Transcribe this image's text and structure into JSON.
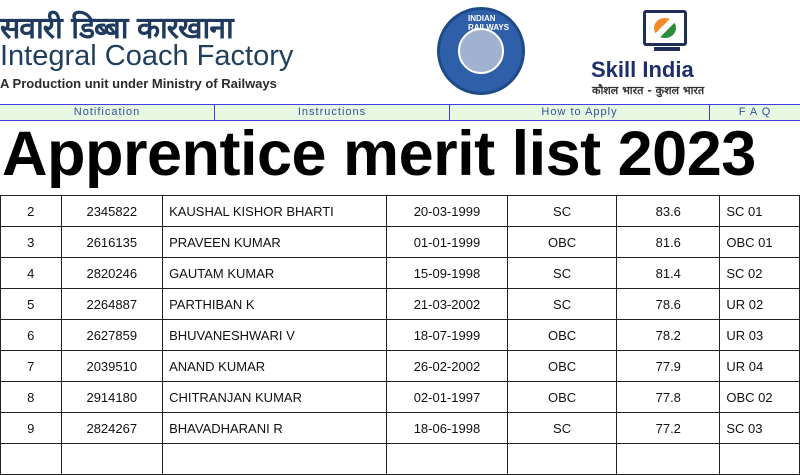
{
  "header": {
    "hindi_name": "सवारी डिब्बा कारखाना",
    "org_name": "Integral Coach Factory",
    "tagline": "A Production unit under Ministry of Railways",
    "emblem_text": "INDIAN RAILWAYS",
    "skill_india": "Skill India",
    "skill_india_hindi": "कौशल भारत - कुशल भारत"
  },
  "nav": [
    {
      "label": "Notification"
    },
    {
      "label": "Instructions"
    },
    {
      "label": "How to Apply"
    },
    {
      "label": "F A Q"
    }
  ],
  "title": "Apprentice merit list 2023",
  "table": {
    "rows": [
      [
        "2",
        "2345822",
        "KAUSHAL KISHOR BHARTI",
        "20-03-1999",
        "SC",
        "83.6",
        "SC 01"
      ],
      [
        "3",
        "2616135",
        "PRAVEEN KUMAR",
        "01-01-1999",
        "OBC",
        "81.6",
        "OBC 01"
      ],
      [
        "4",
        "2820246",
        "GAUTAM KUMAR",
        "15-09-1998",
        "SC",
        "81.4",
        "SC 02"
      ],
      [
        "5",
        "2264887",
        "PARTHIBAN K",
        "21-03-2002",
        "SC",
        "78.6",
        "UR 02"
      ],
      [
        "6",
        "2627859",
        "BHUVANESHWARI V",
        "18-07-1999",
        "OBC",
        "78.2",
        "UR 03"
      ],
      [
        "7",
        "2039510",
        "ANAND KUMAR",
        "26-02-2002",
        "OBC",
        "77.9",
        "UR 04"
      ],
      [
        "8",
        "2914180",
        "CHITRANJAN KUMAR",
        "02-01-1997",
        "OBC",
        "77.8",
        "OBC 02"
      ],
      [
        "9",
        "2824267",
        "BHAVADHARANI R",
        "18-06-1998",
        "SC",
        "77.2",
        "SC 03"
      ]
    ]
  }
}
